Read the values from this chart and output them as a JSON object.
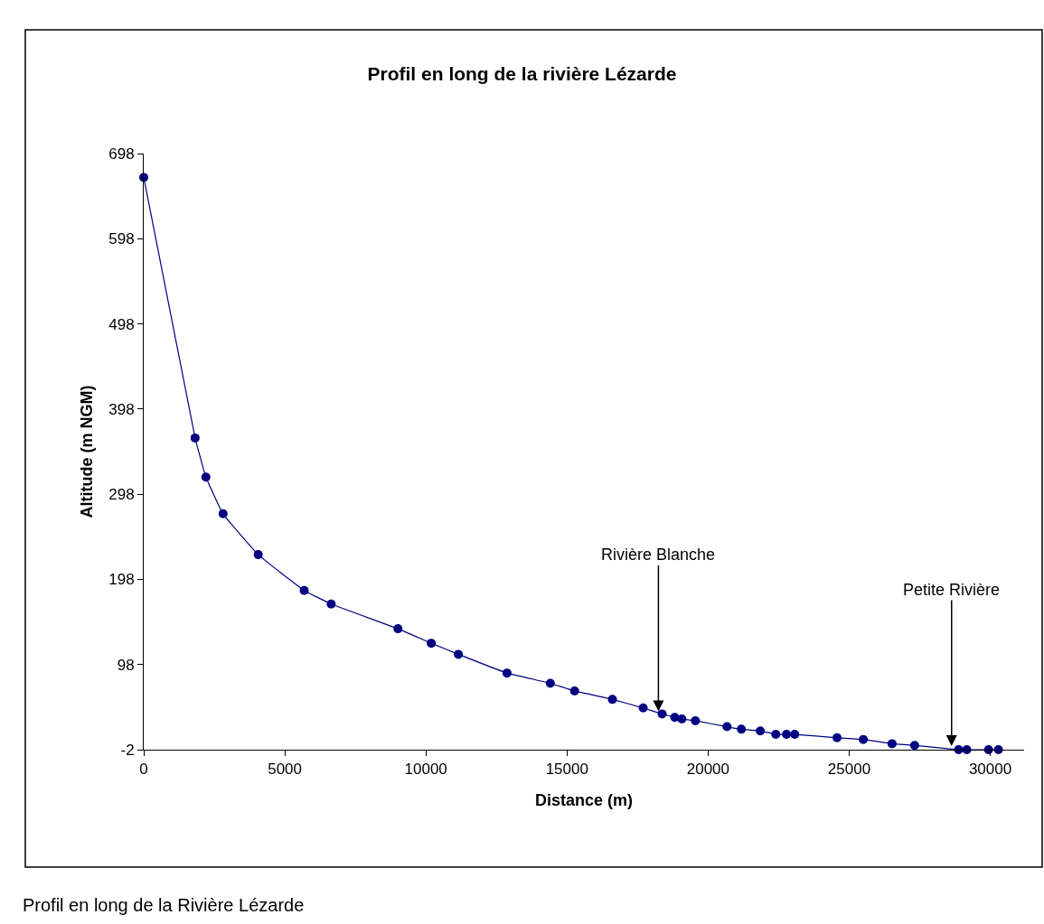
{
  "chart_data": {
    "type": "line",
    "title": "Profil en long de la rivière Lézarde",
    "xlabel": "Distance (m)",
    "ylabel": "Altitude (m NGM)",
    "x": [
      0,
      1821,
      2204,
      2812,
      4058,
      5687,
      6645,
      9010,
      10190,
      11150,
      12875,
      14410,
      15270,
      16610,
      17700,
      18370,
      18820,
      19070,
      19550,
      20670,
      21180,
      21850,
      22400,
      22780,
      23070,
      24570,
      25500,
      26520,
      27320,
      28880,
      29170,
      29940,
      30290
    ],
    "series": [
      {
        "color": "#000080",
        "values": [
          670,
          364,
          318,
          275,
          227,
          185,
          169,
          140,
          123,
          110,
          88,
          76,
          67,
          57,
          47,
          40,
          36,
          34,
          32,
          25,
          22,
          20,
          16,
          16,
          16,
          12,
          10,
          5,
          3,
          -2,
          -2,
          -2,
          -2
        ]
      }
    ],
    "xlim": [
      0,
      31200
    ],
    "ylim": [
      -2,
      698
    ],
    "xticks": [
      0,
      5000,
      10000,
      15000,
      20000,
      25000,
      30000
    ],
    "yticks": [
      -2,
      98,
      198,
      298,
      398,
      498,
      598,
      698
    ],
    "marker": "circle",
    "line_style": "solid",
    "legend": false,
    "annotations": [
      {
        "text": "Rivière Blanche",
        "x": 18240,
        "y": 41
      },
      {
        "text": "Petite Rivière",
        "x": 28630,
        "y": 0
      },
      "Profil en long de la Rivière Lézarde"
    ]
  }
}
